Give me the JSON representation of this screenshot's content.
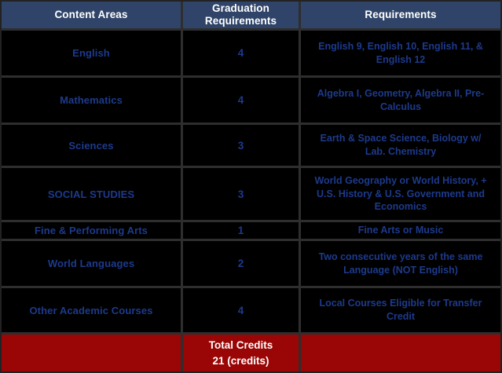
{
  "table": {
    "headers": [
      "Content Areas",
      "Graduation Requirements",
      "Requirements"
    ],
    "rows": [
      {
        "area": "English",
        "credits": "4",
        "requirements": "English 9, English 10, English 11, & English 12"
      },
      {
        "area": "Mathematics",
        "credits": "4",
        "requirements": "Algebra I, Geometry, Algebra II, Pre-Calculus"
      },
      {
        "area": "Sciences",
        "credits": "3",
        "requirements": "Earth & Space Science, Biology w/ Lab. Chemistry"
      },
      {
        "area": "SOCIAL STUDIES",
        "credits": "3",
        "requirements": "World Geography or World History, + U.S. History & U.S. Government and Economics"
      },
      {
        "area": "Fine & Performing Arts",
        "credits": "1",
        "requirements": "Fine Arts or Music"
      },
      {
        "area": "World Languages",
        "credits": "2",
        "requirements": "Two consecutive years of the same Language (NOT English)"
      },
      {
        "area": "Other Academic Courses",
        "credits": "4",
        "requirements": "Local Courses Eligible for Transfer Credit"
      }
    ],
    "footer": {
      "label": "Total Credits",
      "value": "21 (credits)"
    }
  },
  "colors": {
    "header_bg": "#2f4468",
    "body_bg": "#000000",
    "grid_line": "#2e2e2e",
    "blue_text": "#1d3a8c",
    "footer_bg": "#9a0505",
    "white_text": "#ffffff"
  }
}
